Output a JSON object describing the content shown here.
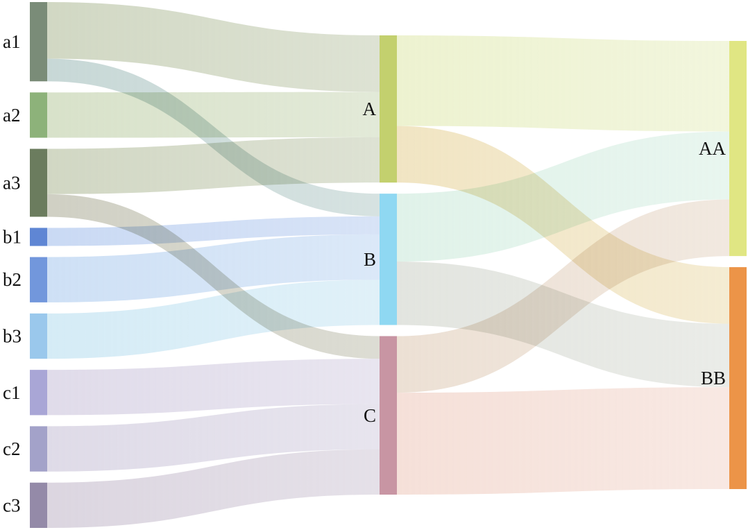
{
  "chart_data": {
    "type": "sankey",
    "nodes": [
      {
        "id": "a1",
        "label": "a1",
        "color": "#7a8c78"
      },
      {
        "id": "a2",
        "label": "a2",
        "color": "#8db27a"
      },
      {
        "id": "a3",
        "label": "a3",
        "color": "#6b7c5e"
      },
      {
        "id": "b1",
        "label": "b1",
        "color": "#5f86d4"
      },
      {
        "id": "b2",
        "label": "b2",
        "color": "#7297dc"
      },
      {
        "id": "b3",
        "label": "b3",
        "color": "#9ac8ec"
      },
      {
        "id": "c1",
        "label": "c1",
        "color": "#a9a6d6"
      },
      {
        "id": "c2",
        "label": "c2",
        "color": "#a3a2c9"
      },
      {
        "id": "c3",
        "label": "c3",
        "color": "#948aa8"
      },
      {
        "id": "A",
        "label": "A",
        "color": "#c3d06e"
      },
      {
        "id": "B",
        "label": "B",
        "color": "#8fd8f2"
      },
      {
        "id": "C",
        "label": "C",
        "color": "#c895a3"
      },
      {
        "id": "AA",
        "label": "AA",
        "color": "#e0e683"
      },
      {
        "id": "BB",
        "label": "BB",
        "color": "#ec9448"
      }
    ],
    "links": [
      {
        "source": "a1",
        "target": "A",
        "value": 5,
        "color": "#c2cbb0"
      },
      {
        "source": "a1",
        "target": "B",
        "value": 2,
        "color": "#b5cbc9"
      },
      {
        "source": "a2",
        "target": "A",
        "value": 4,
        "color": "#cbd8b8"
      },
      {
        "source": "a3",
        "target": "A",
        "value": 4,
        "color": "#c2cab0"
      },
      {
        "source": "a3",
        "target": "C",
        "value": 2,
        "color": "#c0c0b0"
      },
      {
        "source": "b1",
        "target": "B",
        "value": 1.6,
        "color": "#b8cdf0"
      },
      {
        "source": "b2",
        "target": "B",
        "value": 4,
        "color": "#bed6f2"
      },
      {
        "source": "b3",
        "target": "B",
        "value": 4,
        "color": "#c7e5f3"
      },
      {
        "source": "c1",
        "target": "C",
        "value": 4,
        "color": "#d6d0e3"
      },
      {
        "source": "c2",
        "target": "C",
        "value": 4,
        "color": "#d4cfe0"
      },
      {
        "source": "c3",
        "target": "C",
        "value": 4,
        "color": "#d0c8d6"
      },
      {
        "source": "A",
        "target": "AA",
        "value": 8,
        "color": "#e7eec1"
      },
      {
        "source": "A",
        "target": "BB",
        "value": 5,
        "color": "#ecdcaf"
      },
      {
        "source": "B",
        "target": "AA",
        "value": 6,
        "color": "#d6eee2"
      },
      {
        "source": "B",
        "target": "BB",
        "value": 5.6,
        "color": "#d9dcd5"
      },
      {
        "source": "C",
        "target": "AA",
        "value": 5,
        "color": "#e6d6c6"
      },
      {
        "source": "C",
        "target": "BB",
        "value": 9,
        "color": "#f2d6cc"
      }
    ]
  }
}
